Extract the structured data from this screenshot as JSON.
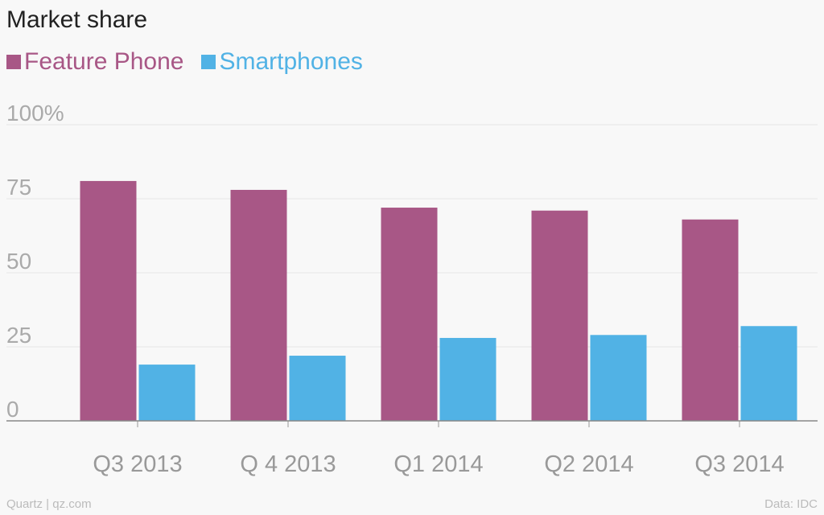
{
  "chart_data": {
    "type": "bar",
    "title": "Market share",
    "categories": [
      "Q3 2013",
      "Q 4 2013",
      "Q1 2014",
      "Q2 2014",
      "Q3 2014"
    ],
    "series": [
      {
        "name": "Feature Phone",
        "color": "#a85786",
        "values": [
          81,
          78,
          72,
          71,
          68
        ]
      },
      {
        "name": "Smartphones",
        "color": "#51b2e5",
        "values": [
          19,
          22,
          28,
          29,
          32
        ]
      }
    ],
    "ylim": [
      0,
      100
    ],
    "yticks": [
      {
        "value": 0,
        "label": "0"
      },
      {
        "value": 25,
        "label": "25"
      },
      {
        "value": 50,
        "label": "50"
      },
      {
        "value": 75,
        "label": "75"
      },
      {
        "value": 100,
        "label": "100%"
      }
    ],
    "xlabel": "",
    "ylabel": "",
    "grid": true,
    "legend": "top-left"
  },
  "footer": {
    "source_credit": "Quartz | qz.com",
    "data_credit": "Data: IDC"
  }
}
